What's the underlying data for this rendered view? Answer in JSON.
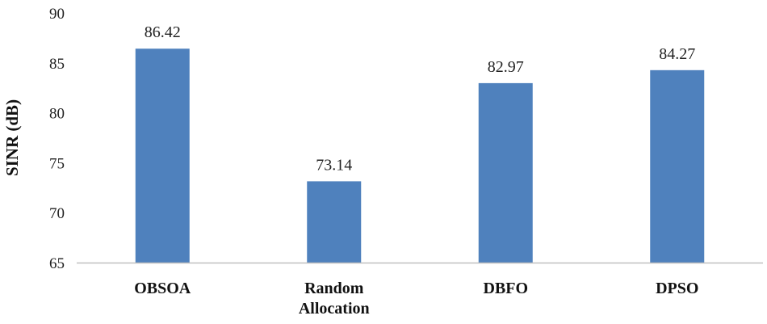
{
  "chart_data": {
    "type": "bar",
    "title": "",
    "xlabel": "",
    "ylabel": "SINR (dB)",
    "categories": [
      [
        "OBSOA"
      ],
      [
        "Random",
        "Allocation"
      ],
      [
        "DBFO"
      ],
      [
        "DPSO"
      ]
    ],
    "values": [
      86.42,
      73.14,
      82.97,
      84.27
    ],
    "data_labels": [
      "86.42",
      "73.14",
      "82.97",
      "84.27"
    ],
    "yticks": [
      65,
      70,
      75,
      80,
      85,
      90
    ],
    "ylim": [
      65,
      90
    ],
    "grid": false,
    "bar_color": "#4f81bd"
  }
}
